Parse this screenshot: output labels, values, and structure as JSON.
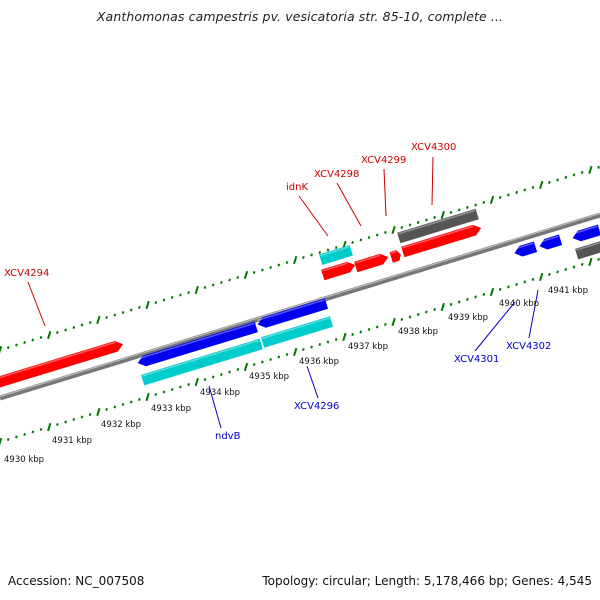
{
  "title": "Xanthomonas campestris pv. vesicatoria str. 85-10, complete ...",
  "footer": {
    "accession": "Accession: NC_007508",
    "summary": "Topology: circular; Length: 5,178,466 bp; Genes: 4,545"
  },
  "colors": {
    "cds_forward": "#ff0000",
    "cds_reverse": "#0000ee",
    "gene": "#00cccc",
    "other": "#555555",
    "backbone": "#888888",
    "ticks": "#007700",
    "label_forward": "#cc0000",
    "label_reverse": "#0000cc"
  },
  "ticks": {
    "forward_strand": [],
    "reverse_strand": [
      "4930 kbp",
      "4931 kbp",
      "4932 kbp",
      "4933 kbp",
      "4934 kbp",
      "4935 kbp",
      "4936 kbp",
      "4937 kbp",
      "4938 kbp",
      "4939 kbp",
      "4940 kbp",
      "4941 kbp"
    ]
  },
  "labels": {
    "forward": [
      "XCV4294",
      "idnK",
      "XCV4298",
      "XCV4299",
      "XCV4300"
    ],
    "reverse": [
      "ndvB",
      "XCV4296",
      "XCV4301",
      "XCV4302"
    ]
  }
}
